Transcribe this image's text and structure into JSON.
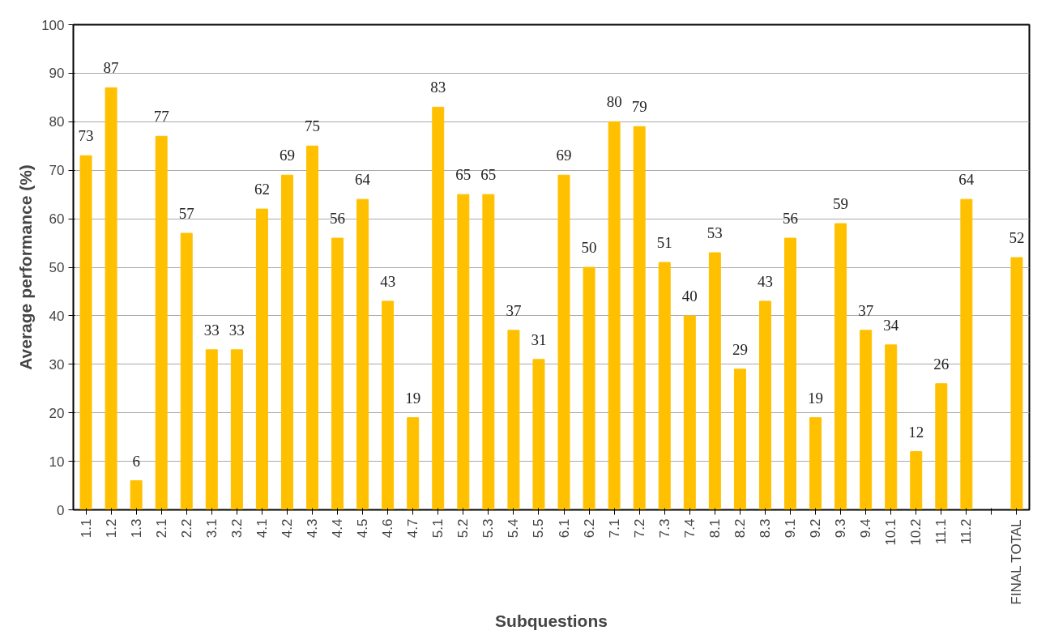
{
  "chart_data": {
    "type": "bar",
    "xlabel": "Subquestions",
    "ylabel": "Average performance (%)",
    "categories": [
      "1.1",
      "1.2",
      "1.3",
      "2.1",
      "2.2",
      "3.1",
      "3.2",
      "4.1",
      "4.2",
      "4.3",
      "4.4",
      "4.5",
      "4.6",
      "4.7",
      "5.1",
      "5.2",
      "5.3",
      "5.4",
      "5.5",
      "6.1",
      "6.2",
      "7.1",
      "7.2",
      "7.3",
      "7.4",
      "8.1",
      "8.2",
      "8.3",
      "9.1",
      "9.2",
      "9.3",
      "9.4",
      "10.1",
      "10.2",
      "11.1",
      "11.2",
      null,
      "FINAL TOTAL"
    ],
    "values": [
      73,
      87,
      6,
      77,
      57,
      33,
      33,
      62,
      69,
      75,
      56,
      64,
      43,
      19,
      83,
      65,
      65,
      37,
      31,
      69,
      50,
      80,
      79,
      51,
      40,
      53,
      29,
      43,
      56,
      19,
      59,
      37,
      34,
      12,
      26,
      64,
      null,
      52
    ],
    "color": "#ffc000",
    "ylim": [
      0,
      100
    ],
    "yticks": [
      0,
      10,
      20,
      30,
      40,
      50,
      60,
      70,
      80,
      90,
      100
    ],
    "grid": "y",
    "data_labels": true
  }
}
